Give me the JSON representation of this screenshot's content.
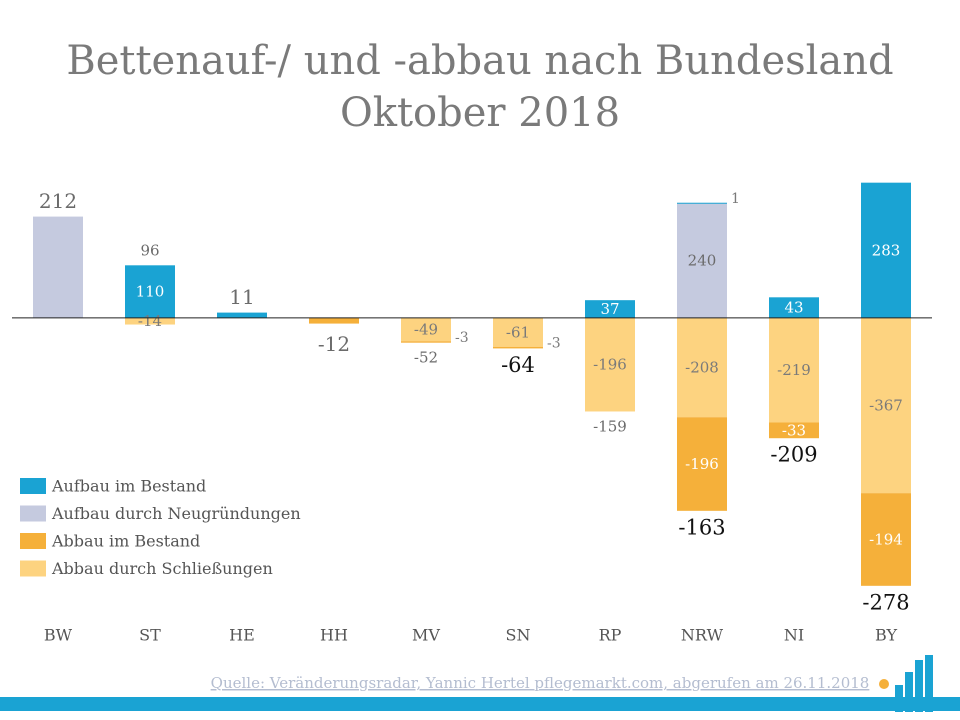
{
  "chart_data": {
    "type": "stacked-bar",
    "title": "Bettenauf-/ und -abbau nach Bundesland",
    "subtitle": "Oktober 2018",
    "categories": [
      "BW",
      "ST",
      "HE",
      "HH",
      "MV",
      "SN",
      "RP",
      "NRW",
      "NI",
      "BY"
    ],
    "series": [
      {
        "name": "Aufbau im Bestand",
        "color": "#1aa3d3",
        "values": [
          null,
          110,
          11,
          null,
          null,
          null,
          37,
          1,
          43,
          283
        ]
      },
      {
        "name": "Aufbau durch Neugründungen",
        "color": "#c5cadf",
        "values": [
          212,
          null,
          null,
          null,
          null,
          null,
          null,
          240,
          null,
          null
        ]
      },
      {
        "name": "Abbau im Bestand",
        "color": "#f5b03a",
        "values": [
          null,
          null,
          null,
          -12,
          -3,
          -3,
          null,
          -196,
          -33,
          -194
        ]
      },
      {
        "name": "Abbau durch Schließungen",
        "color": "#fdd380",
        "values": [
          null,
          -14,
          null,
          null,
          -49,
          -61,
          -196,
          -208,
          -219,
          -367
        ]
      }
    ],
    "totals": [
      212,
      96,
      11,
      -12,
      -52,
      -64,
      -159,
      -163,
      -209,
      -278
    ],
    "ylim": [
      -620,
      320
    ],
    "source": "Quelle: Veränderungsradar, Yannic Hertel pflegemarkt.com, abgerufen am 26.11.2018"
  }
}
